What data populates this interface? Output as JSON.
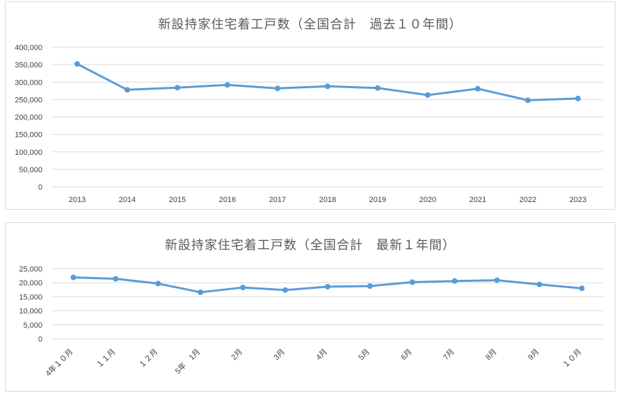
{
  "chart_data": [
    {
      "type": "line",
      "title": "新設持家住宅着工戸数（全国合計　過去１０年間）",
      "xlabel": "",
      "ylabel": "",
      "categories": [
        "2013",
        "2014",
        "2015",
        "2016",
        "2017",
        "2018",
        "2019",
        "2020",
        "2021",
        "2022",
        "2023"
      ],
      "values": [
        352000,
        278000,
        284000,
        292000,
        282000,
        288000,
        283000,
        263000,
        281000,
        248000,
        253000
      ],
      "yticks": [
        "0",
        "50,000",
        "100,000",
        "150,000",
        "200,000",
        "250,000",
        "300,000",
        "350,000",
        "400,000"
      ],
      "ylim": [
        0,
        400000
      ],
      "grid": true,
      "legend": "none",
      "color": "#5b9bd5"
    },
    {
      "type": "line",
      "title": "新設持家住宅着工戸数（全国合計　最新１年間）",
      "xlabel": "",
      "ylabel": "",
      "categories": [
        "4年１０月",
        "１１月",
        "１２月",
        "5年　1月",
        "2月",
        "3月",
        "4月",
        "5月",
        "6月",
        "7月",
        "8月",
        "9月",
        "１０月"
      ],
      "values": [
        21900,
        21400,
        19700,
        16600,
        18300,
        17400,
        18600,
        18800,
        20200,
        20600,
        20900,
        19400,
        18000
      ],
      "yticks": [
        "0",
        "5,000",
        "10,000",
        "15,000",
        "20,000",
        "25,000"
      ],
      "ylim": [
        0,
        25000
      ],
      "grid": true,
      "legend": "none",
      "color": "#5b9bd5"
    }
  ]
}
